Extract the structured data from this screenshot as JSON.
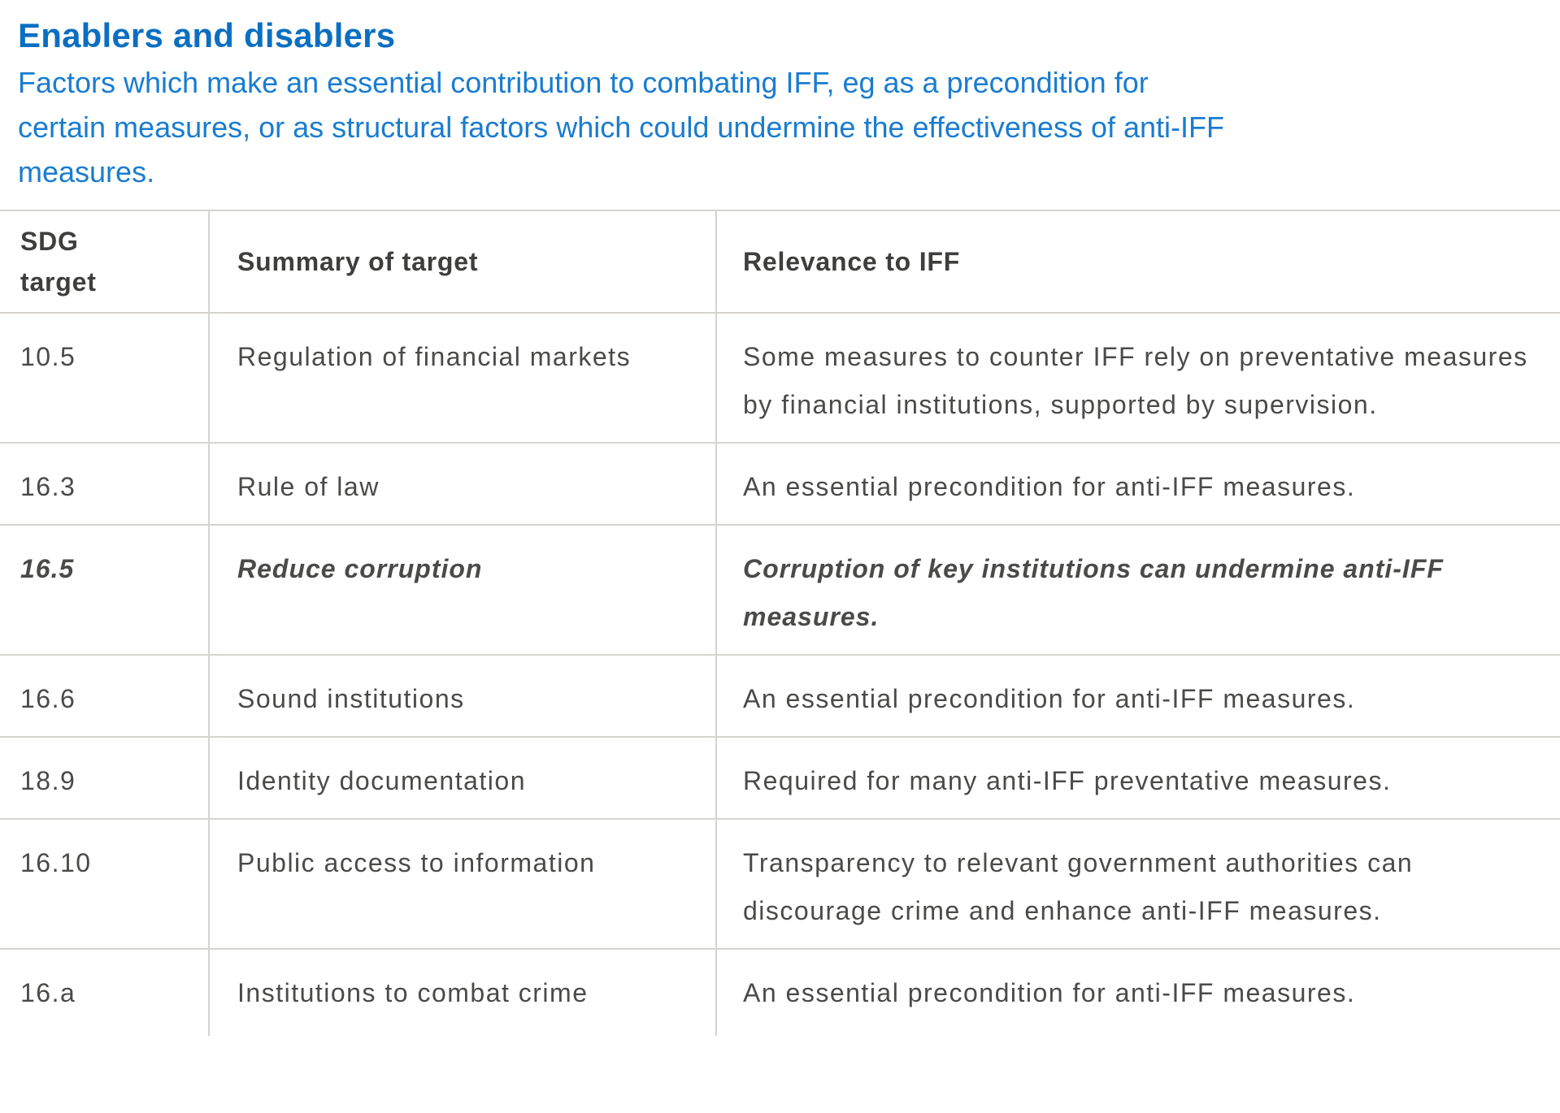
{
  "page": {
    "title": "Enablers and disablers",
    "subtitle_lines": [
      "Factors which make an essential contribution to combating IFF, eg as a precondition for",
      "certain measures, or as structural factors which could undermine the effectiveness of anti-IFF",
      "measures."
    ]
  },
  "table": {
    "columns": [
      "SDG target",
      "Summary of target",
      "Relevance to IFF"
    ],
    "rows": [
      {
        "target": "10.5",
        "summary": "Regulation of financial markets",
        "relevance": "Some measures to counter IFF rely on preventative measures by financial institutions, supported by supervision.",
        "emphasis": false
      },
      {
        "target": "16.3",
        "summary": "Rule of law",
        "relevance": "An essential precondition for anti-IFF measures.",
        "emphasis": false
      },
      {
        "target": "16.5",
        "summary": "Reduce corruption",
        "relevance": "Corruption of key institutions can undermine anti-IFF measures.",
        "emphasis": true
      },
      {
        "target": "16.6",
        "summary": "Sound institutions",
        "relevance": "An essential precondition for anti-IFF measures.",
        "emphasis": false
      },
      {
        "target": "18.9",
        "summary": "Identity documentation",
        "relevance": "Required for many anti-IFF preventative measures.",
        "emphasis": false
      },
      {
        "target": "16.10",
        "summary": "Public access to information",
        "relevance": "Transparency to relevant government authorities can discourage crime and enhance anti-IFF measures.",
        "emphasis": false
      },
      {
        "target": "16.a",
        "summary": "Institutions to combat crime",
        "relevance": "An essential precondition for anti-IFF measures.",
        "emphasis": false
      }
    ]
  },
  "colors": {
    "title": "#0b6fc1",
    "subtitle": "#1a7cd0",
    "text": "#4a4a48",
    "header_text": "#3e3e3c",
    "border": "#d7d4d0"
  }
}
